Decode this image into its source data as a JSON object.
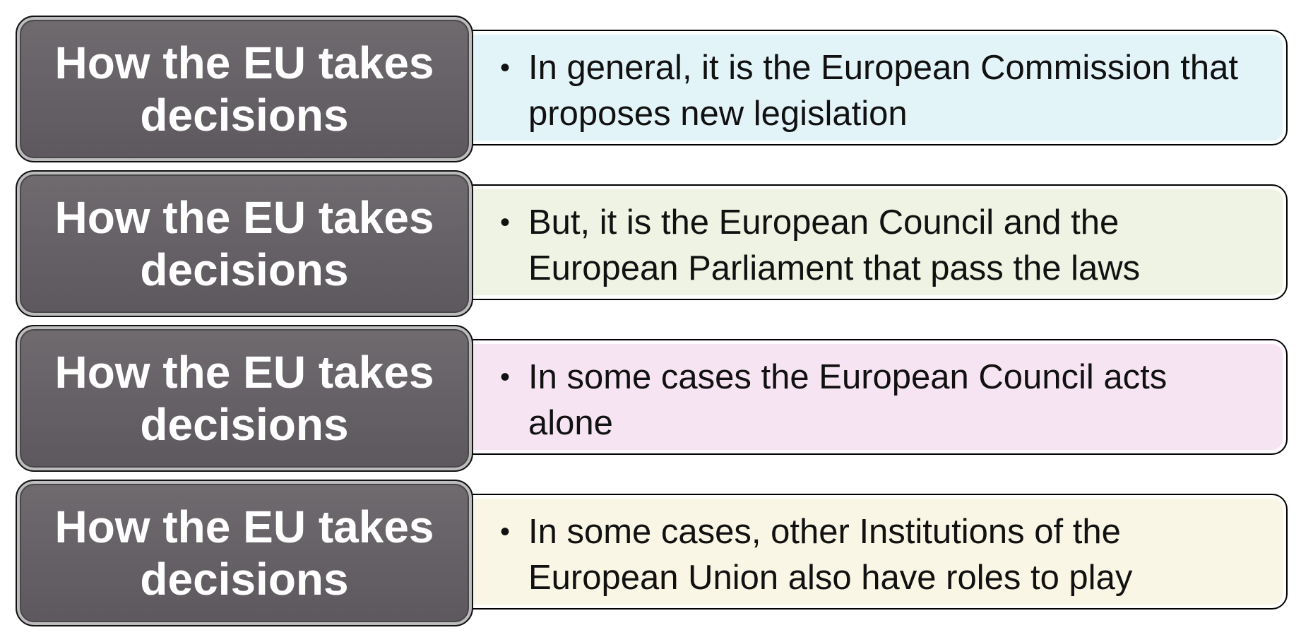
{
  "rows": [
    {
      "label": "How the EU takes decisions",
      "text": "In general, it is the European Commission that proposes new legislation",
      "fill": "#e3f4f9"
    },
    {
      "label": "How the EU takes decisions",
      "text": "But, it is the European Council and the European Parliament that pass the laws",
      "fill": "#eef3e3"
    },
    {
      "label": "How the EU takes decisions",
      "text": "In some cases the European Council acts alone",
      "fill": "#f7e4f3"
    },
    {
      "label": "How the EU takes decisions",
      "text": "In some cases, other Institutions of the European Union also have roles to play",
      "fill": "#f9f6e5"
    }
  ],
  "colors": {
    "label_fill": "#656166",
    "label_text": "#ffffff",
    "outline": "#000000"
  },
  "bullet_glyph": "•"
}
